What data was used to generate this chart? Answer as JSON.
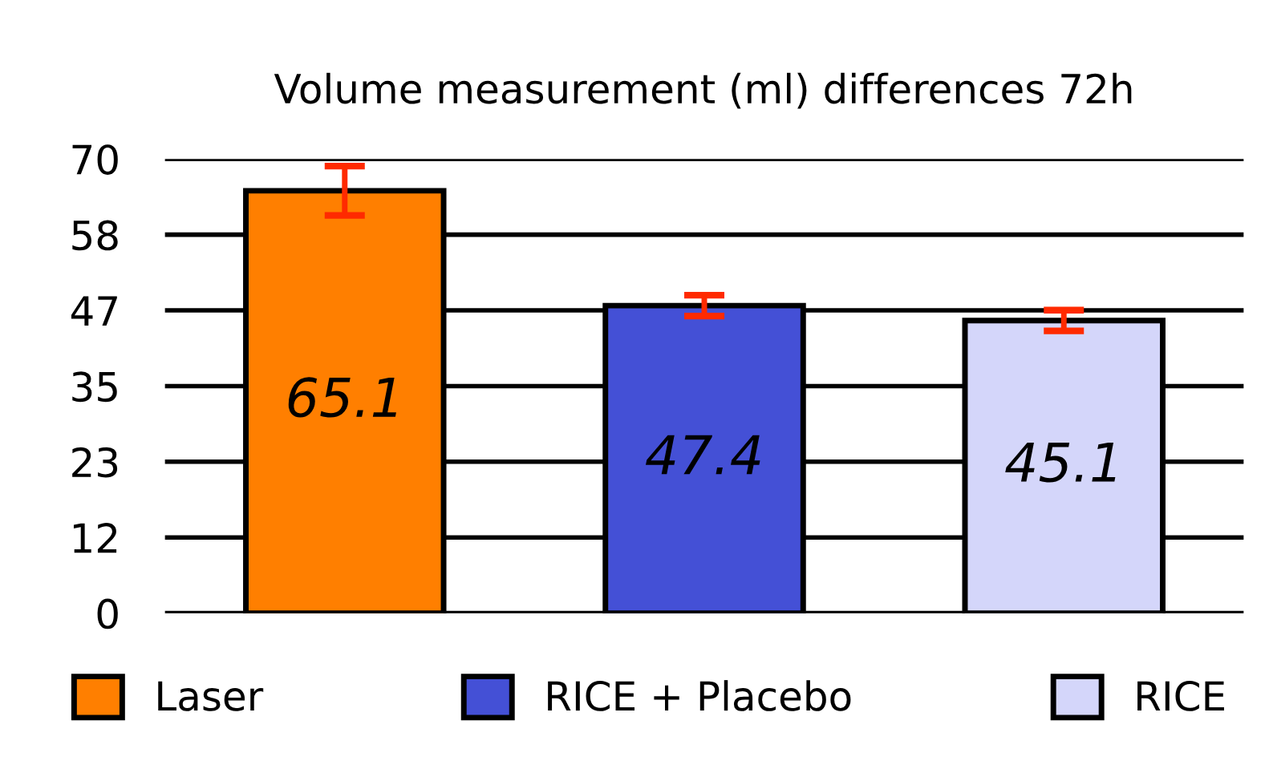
{
  "chart_data": {
    "type": "bar",
    "title": "Volume measurement (ml) differences 72h",
    "categories": [
      null,
      null,
      null
    ],
    "series": [
      {
        "name": "Laser",
        "color": "#ff7f00",
        "values": [
          65.1,
          null,
          null
        ],
        "errors": [
          3.8,
          null,
          null
        ]
      },
      {
        "name": "RICE + Placebo",
        "color": "#4450d6",
        "values": [
          null,
          47.4,
          null
        ],
        "errors": [
          null,
          1.6,
          null
        ]
      },
      {
        "name": "RICE",
        "color": "#d4d6fa",
        "values": [
          null,
          null,
          45.1
        ],
        "errors": [
          null,
          null,
          1.6
        ]
      }
    ],
    "ylim": [
      0,
      70
    ],
    "yticks": [
      0,
      {
        "value": 11.667,
        "label": "12"
      },
      {
        "value": 23.333,
        "label": "23"
      },
      35,
      {
        "value": 46.667,
        "label": "47"
      },
      {
        "value": 58.333,
        "label": "58"
      },
      70
    ],
    "grid": "y",
    "legend": "bottom",
    "data_labels": true,
    "tick_labels": "y"
  }
}
